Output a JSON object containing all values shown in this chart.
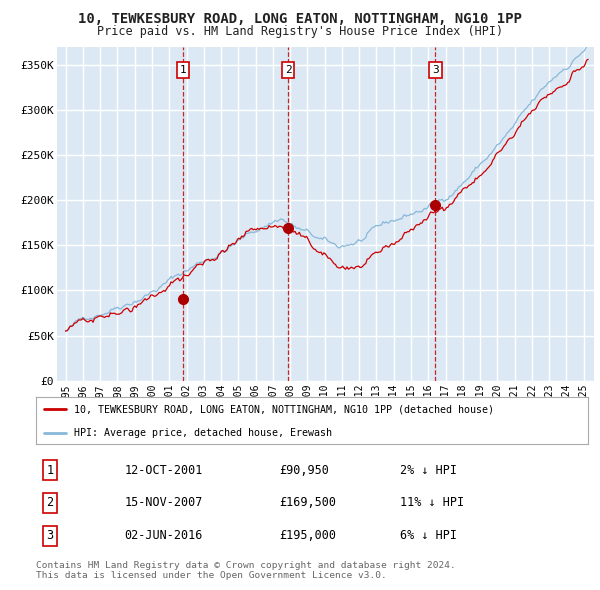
{
  "title": "10, TEWKESBURY ROAD, LONG EATON, NOTTINGHAM, NG10 1PP",
  "subtitle": "Price paid vs. HM Land Registry's House Price Index (HPI)",
  "copyright": "Contains HM Land Registry data © Crown copyright and database right 2024.\nThis data is licensed under the Open Government Licence v3.0.",
  "legend_line1": "10, TEWKESBURY ROAD, LONG EATON, NOTTINGHAM, NG10 1PP (detached house)",
  "legend_line2": "HPI: Average price, detached house, Erewash",
  "purchases": [
    {
      "num": 1,
      "date": "12-OCT-2001",
      "year": 2001.79,
      "price": 90950,
      "pct": "2%",
      "dir": "↓"
    },
    {
      "num": 2,
      "date": "15-NOV-2007",
      "year": 2007.88,
      "price": 169500,
      "pct": "11%",
      "dir": "↓"
    },
    {
      "num": 3,
      "date": "02-JUN-2016",
      "year": 2016.42,
      "price": 195000,
      "pct": "6%",
      "dir": "↓"
    }
  ],
  "ylim": [
    0,
    370000
  ],
  "yticks": [
    0,
    50000,
    100000,
    150000,
    200000,
    250000,
    300000,
    350000
  ],
  "ytick_labels": [
    "£0",
    "£50K",
    "£100K",
    "£150K",
    "£200K",
    "£250K",
    "£300K",
    "£350K"
  ],
  "xlim_left": 1994.5,
  "xlim_right": 2025.6,
  "xtick_years": [
    1995,
    1996,
    1997,
    1998,
    1999,
    2000,
    2001,
    2002,
    2003,
    2004,
    2005,
    2006,
    2007,
    2008,
    2009,
    2010,
    2011,
    2012,
    2013,
    2014,
    2015,
    2016,
    2017,
    2018,
    2019,
    2020,
    2021,
    2022,
    2023,
    2024,
    2025
  ],
  "background_color": "#dce9f5",
  "grid_color": "#ffffff",
  "line_color_red": "#cc0000",
  "line_color_blue": "#89b8d8",
  "dot_color": "#aa0000",
  "vline_color": "#cc0000",
  "box_edge_color": "#cc0000",
  "title_color": "#222222",
  "legend_border_color": "#aaaaaa",
  "footer_color": "#666666"
}
